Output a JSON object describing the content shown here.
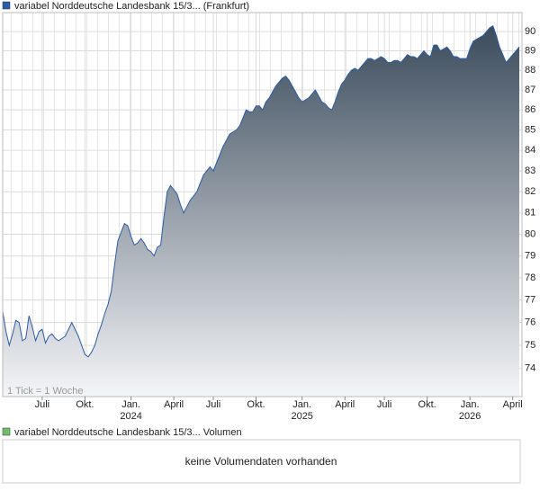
{
  "chart_data": {
    "type": "area",
    "series": [
      {
        "name": "variabel Norddeutsche Landesbank 15/3... (Frankfurt)",
        "color": "#2a5caa",
        "values": [
          76.5,
          75.6,
          75.0,
          75.5,
          76.1,
          76.0,
          75.2,
          75.3,
          76.3,
          75.8,
          75.2,
          75.6,
          75.7,
          75.1,
          75.4,
          75.5,
          75.3,
          75.2,
          75.3,
          75.4,
          75.7,
          76.0,
          75.7,
          75.4,
          75.0,
          74.6,
          74.5,
          74.7,
          75.0,
          75.5,
          75.9,
          76.4,
          76.8,
          77.4,
          78.6,
          79.7,
          80.1,
          80.5,
          80.4,
          79.9,
          79.5,
          79.6,
          79.8,
          79.6,
          79.3,
          79.2,
          79.0,
          79.4,
          79.5,
          80.8,
          82.0,
          82.3,
          82.1,
          81.9,
          81.4,
          81.0,
          81.3,
          81.6,
          81.8,
          82.0,
          82.4,
          82.8,
          83.0,
          83.2,
          83.0,
          83.4,
          83.8,
          84.2,
          84.5,
          84.8,
          84.9,
          85.0,
          85.2,
          85.6,
          86.0,
          85.9,
          85.9,
          86.2,
          86.2,
          86.0,
          86.4,
          86.6,
          86.9,
          87.2,
          87.4,
          87.6,
          87.7,
          87.5,
          87.2,
          86.9,
          86.6,
          86.4,
          86.5,
          86.6,
          86.8,
          87.0,
          86.7,
          86.4,
          86.3,
          86.1,
          86.0,
          86.4,
          86.9,
          87.3,
          87.5,
          87.8,
          88.0,
          88.1,
          88.0,
          88.2,
          88.4,
          88.6,
          88.6,
          88.5,
          88.6,
          88.7,
          88.6,
          88.4,
          88.4,
          88.5,
          88.5,
          88.4,
          88.6,
          88.8,
          88.7,
          88.7,
          88.6,
          88.8,
          89.0,
          88.8,
          88.7,
          89.3,
          89.3,
          89.0,
          89.1,
          89.2,
          89.0,
          88.7,
          88.7,
          88.6,
          88.6,
          88.6,
          89.1,
          89.5,
          89.6,
          89.7,
          89.8,
          90.0,
          90.2,
          90.3,
          89.8,
          89.2,
          88.8,
          88.4,
          88.6,
          88.8,
          89.0,
          89.2
        ]
      }
    ],
    "xlim": [
      0,
      157
    ],
    "xticks": [
      {
        "value": 12,
        "label": "Juli"
      },
      {
        "value": 25,
        "label": "Okt."
      },
      {
        "value": 39,
        "label": "Jan."
      },
      {
        "value": 52,
        "label": "April"
      },
      {
        "value": 64,
        "label": "Juli"
      },
      {
        "value": 77,
        "label": "Okt."
      },
      {
        "value": 91,
        "label": "Jan."
      },
      {
        "value": 104,
        "label": "April"
      },
      {
        "value": 116,
        "label": "Juli"
      },
      {
        "value": 129,
        "label": "Okt."
      },
      {
        "value": 142,
        "label": "Jan."
      },
      {
        "value": 155,
        "label": "April"
      }
    ],
    "xtick_years": [
      {
        "value": 39,
        "label": "2024"
      },
      {
        "value": 91,
        "label": "2025"
      },
      {
        "value": 142,
        "label": "2026"
      }
    ],
    "ylim": [
      72.8,
      91.0
    ],
    "yticks": [
      74,
      75,
      76,
      77,
      78,
      79,
      80,
      81,
      82,
      83,
      84,
      85,
      86,
      87,
      88,
      89,
      90
    ],
    "log_scale": true,
    "grid": true,
    "note": "1 Tick = 1 Woche"
  },
  "volume_panel": {
    "legend": "variabel Norddeutsche Landesbank 15/3... Volumen",
    "legend_color": "#6fbf6f",
    "message": "keine Volumendaten vorhanden"
  }
}
